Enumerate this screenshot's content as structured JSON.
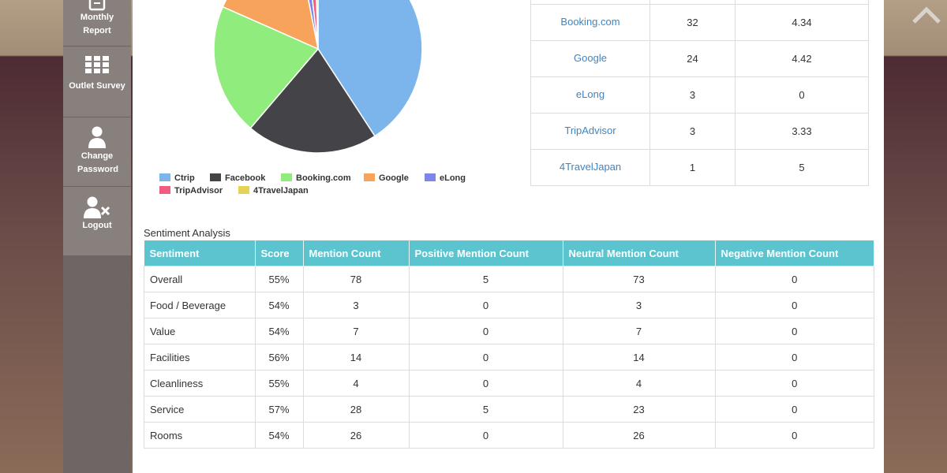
{
  "sidebar": {
    "items": [
      {
        "label": "Monthly Report"
      },
      {
        "label": "Outlet Survey"
      },
      {
        "label": "Change Password"
      },
      {
        "label": "Logout"
      }
    ]
  },
  "chart_data": {
    "type": "pie",
    "labels": [
      "Ctrip",
      "Facebook",
      "Booking.com",
      "Google",
      "eLong",
      "TripAdvisor",
      "4TravelJapan"
    ],
    "values": [
      40,
      20,
      20,
      15,
      1.25,
      1.25,
      0.5
    ],
    "colors": [
      "#7cb5ec",
      "#434348",
      "#90ed7d",
      "#f7a35c",
      "#8085e9",
      "#f15c80",
      "#e4d354"
    ],
    "legend": "bottom"
  },
  "sources": {
    "rows": [
      {
        "name": "Booking.com",
        "count": "32",
        "rating": "4.34"
      },
      {
        "name": "Google",
        "count": "24",
        "rating": "4.42"
      },
      {
        "name": "eLong",
        "count": "3",
        "rating": "0"
      },
      {
        "name": "TripAdvisor",
        "count": "3",
        "rating": "3.33"
      },
      {
        "name": "4TravelJapan",
        "count": "1",
        "rating": "5"
      }
    ]
  },
  "sentiment": {
    "title": "Sentiment Analysis",
    "headers": [
      "Sentiment",
      "Score",
      "Mention Count",
      "Positive Mention Count",
      "Neutral Mention Count",
      "Negative Mention Count"
    ],
    "rows": [
      [
        "Overall",
        "55%",
        "78",
        "5",
        "73",
        "0"
      ],
      [
        "Food / Beverage",
        "54%",
        "3",
        "0",
        "3",
        "0"
      ],
      [
        "Value",
        "54%",
        "7",
        "0",
        "7",
        "0"
      ],
      [
        "Facilities",
        "56%",
        "14",
        "0",
        "14",
        "0"
      ],
      [
        "Cleanliness",
        "55%",
        "4",
        "0",
        "4",
        "0"
      ],
      [
        "Service",
        "57%",
        "28",
        "5",
        "23",
        "0"
      ],
      [
        "Rooms",
        "54%",
        "26",
        "0",
        "26",
        "0"
      ]
    ]
  }
}
